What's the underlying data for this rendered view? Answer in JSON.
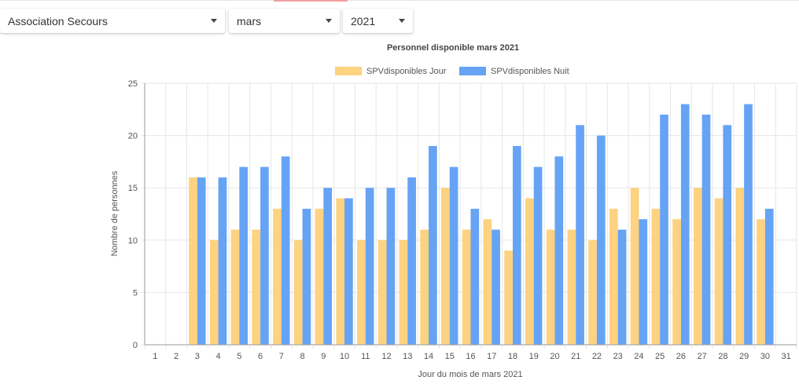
{
  "filters": {
    "association": "Association Secours",
    "month": "mars",
    "year": "2021"
  },
  "colors": {
    "jour": "#fdd280",
    "nuit": "#66a3f5",
    "grid": "#e6e6e6",
    "axis": "#999999"
  },
  "chart_data": {
    "type": "bar",
    "title": "Personnel disponible mars 2021",
    "xlabel": "Jour du mois de mars 2021",
    "ylabel": "Nombre de personnes",
    "ylim": [
      0,
      25
    ],
    "yticks": [
      "0",
      "5",
      "10",
      "15",
      "20",
      "25"
    ],
    "grid": true,
    "legend_position": "top",
    "categories": [
      "1",
      "2",
      "3",
      "4",
      "5",
      "6",
      "7",
      "8",
      "9",
      "10",
      "11",
      "12",
      "13",
      "14",
      "15",
      "16",
      "17",
      "18",
      "19",
      "20",
      "21",
      "22",
      "23",
      "24",
      "25",
      "26",
      "27",
      "28",
      "29",
      "30",
      "31"
    ],
    "series": [
      {
        "name": "SPVdisponibles Jour",
        "values": [
          0,
          0,
          16,
          10,
          11,
          11,
          13,
          10,
          13,
          14,
          10,
          10,
          10,
          11,
          15,
          11,
          12,
          9,
          14,
          11,
          11,
          10,
          13,
          15,
          13,
          12,
          15,
          14,
          15,
          12,
          0
        ]
      },
      {
        "name": "SPVdisponibles Nuit",
        "values": [
          0,
          0,
          16,
          16,
          17,
          17,
          18,
          13,
          15,
          14,
          15,
          15,
          16,
          19,
          17,
          13,
          11,
          19,
          17,
          18,
          21,
          20,
          11,
          12,
          22,
          23,
          22,
          21,
          23,
          13,
          0
        ]
      }
    ]
  }
}
